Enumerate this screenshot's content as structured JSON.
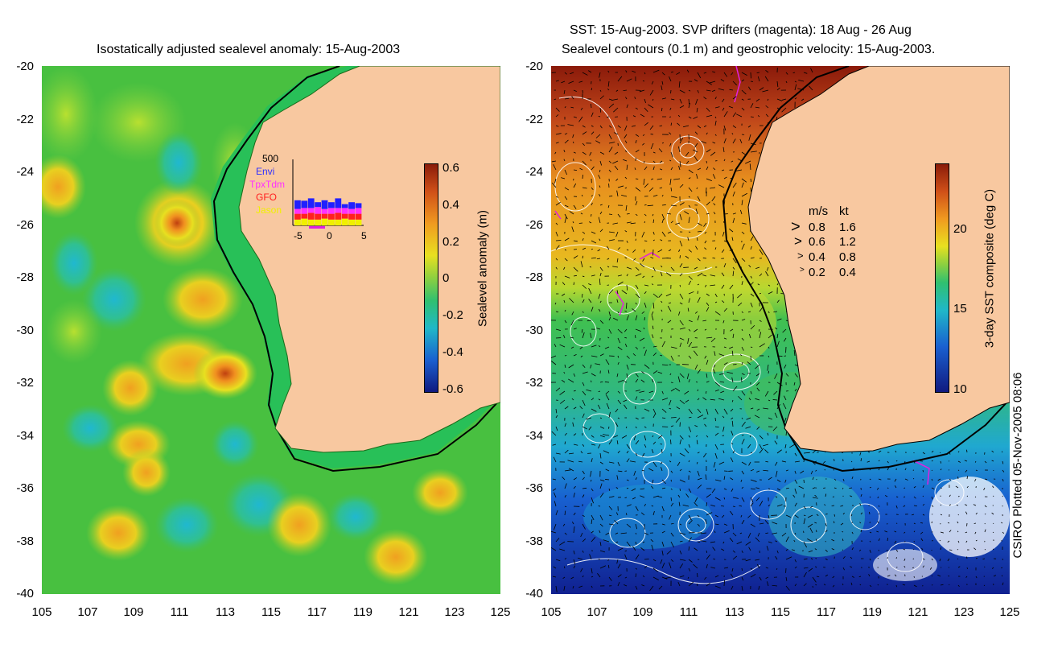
{
  "left_map": {
    "title": "Isostatically adjusted sealevel anomaly: 15-Aug-2003",
    "y_ticks": [
      "-20",
      "-22",
      "-24",
      "-26",
      "-28",
      "-30",
      "-32",
      "-34",
      "-36",
      "-38",
      "-40"
    ],
    "x_ticks": [
      "105",
      "107",
      "109",
      "111",
      "113",
      "115",
      "117",
      "119",
      "121",
      "123",
      "125"
    ],
    "colorbar": {
      "label": "Sealevel anomaly (m)",
      "ticks": [
        "0.6",
        "0.4",
        "0.2",
        "0",
        "-0.2",
        "-0.4",
        "-0.6"
      ]
    },
    "inset": {
      "top_label": "500",
      "legend": [
        "Envi",
        "TpxTdm",
        "GFO",
        "Jason"
      ],
      "x_ticks": [
        "-5",
        "0",
        "5"
      ]
    }
  },
  "right_map": {
    "title_line1": "SST: 15-Aug-2003. SVP drifters (magenta): 18 Aug - 26 Aug",
    "title_line2": "Sealevel contours (0.1 m) and geostrophic velocity: 15-Aug-2003.",
    "y_ticks": [
      "-20",
      "-22",
      "-24",
      "-26",
      "-28",
      "-30",
      "-32",
      "-34",
      "-36",
      "-38",
      "-40"
    ],
    "x_ticks": [
      "105",
      "107",
      "109",
      "111",
      "113",
      "115",
      "117",
      "119",
      "121",
      "123",
      "125"
    ],
    "colorbar": {
      "label": "3-day SST composite (deg C)",
      "ticks": [
        "20",
        "15",
        "10"
      ]
    },
    "velocity_legend": {
      "header_ms": "m/s",
      "header_kt": "kt",
      "rows": [
        {
          "ms": "0.8",
          "kt": "1.6"
        },
        {
          "ms": "0.6",
          "kt": "1.2"
        },
        {
          "ms": "0.4",
          "kt": "0.8"
        },
        {
          "ms": "0.2",
          "kt": "0.4"
        }
      ]
    }
  },
  "credit": "CSIRO Plotted 05-Nov-2005 08:06",
  "colors": {
    "land": "#f8c8a0",
    "shelf": "#22c05a",
    "ocean_mid": "#4cc23c",
    "warm": "#f0b020",
    "cool": "#28b8b0",
    "magenta": "#e020e0"
  },
  "inset_bars": {
    "note": "relative stacked counts per bin",
    "x": [
      -5,
      -4,
      -3,
      -2,
      -1,
      0,
      1,
      2,
      3,
      4
    ],
    "envi": [
      0.18,
      0.15,
      0.2,
      0.1,
      0.18,
      0.12,
      0.2,
      0.08,
      0.14,
      0.1
    ],
    "tpx": [
      0.1,
      0.12,
      0.1,
      0.14,
      0.1,
      0.12,
      0.1,
      0.12,
      0.1,
      0.12
    ],
    "gfo": [
      0.12,
      0.1,
      0.14,
      0.12,
      0.1,
      0.12,
      0.14,
      0.1,
      0.12,
      0.12
    ],
    "jason": [
      0.12,
      0.14,
      0.12,
      0.12,
      0.14,
      0.12,
      0.12,
      0.14,
      0.12,
      0.12
    ]
  }
}
